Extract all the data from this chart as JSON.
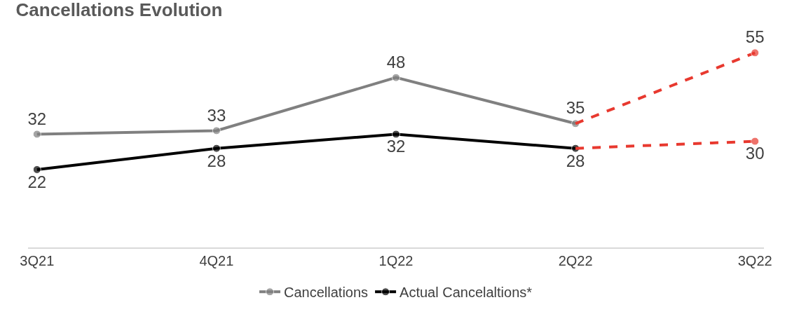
{
  "chart_data": {
    "type": "line",
    "title": "Cancellations Evolution",
    "categories": [
      "3Q21",
      "4Q21",
      "1Q22",
      "2Q22",
      "3Q22"
    ],
    "series": [
      {
        "name": "Cancellations",
        "color": "#808080",
        "values": [
          32,
          33,
          48,
          35,
          null
        ],
        "value_labels": [
          "32",
          "33",
          "48",
          "35",
          null
        ]
      },
      {
        "name": "Actual Cancelaltions*",
        "color": "#000000",
        "values": [
          22,
          28,
          32,
          28,
          null
        ],
        "value_labels": [
          "22",
          "28",
          "32",
          "28",
          null
        ]
      },
      {
        "color": "#e8392f",
        "values": [
          null,
          null,
          null,
          35,
          55
        ],
        "value_labels": [
          null,
          null,
          null,
          null,
          "55"
        ],
        "line_style": "dashed"
      },
      {
        "color": "#e8392f",
        "values": [
          null,
          null,
          null,
          28,
          30
        ],
        "value_labels": [
          null,
          null,
          null,
          null,
          "30"
        ],
        "line_style": "dashed"
      }
    ],
    "marker": "circle",
    "line_style": "solid",
    "legend": "bottom"
  }
}
